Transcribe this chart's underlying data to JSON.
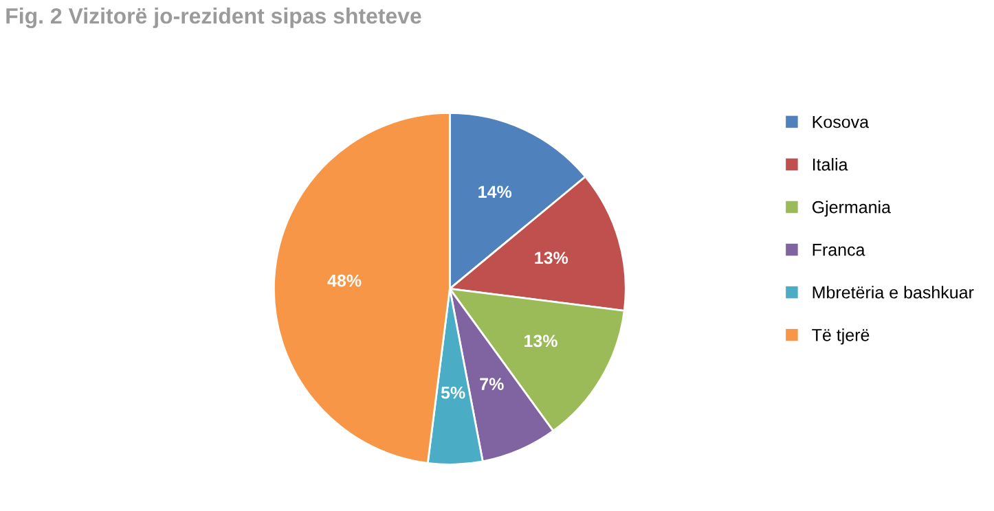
{
  "chart_data": {
    "type": "pie",
    "title": "Fig. 2 Vizitorë jo-rezident sipas shteteve",
    "categories": [
      "Kosova",
      "Italia",
      "Gjermania",
      "Franca",
      "Mbretëria e bashkuar",
      "Të tjerë"
    ],
    "values": [
      14,
      13,
      13,
      7,
      5,
      48
    ],
    "colors": [
      "#4f81bd",
      "#c0504d",
      "#9bbb59",
      "#8064a2",
      "#4bacc6",
      "#f79646"
    ],
    "value_labels": [
      "14%",
      "13%",
      "13%",
      "7%",
      "5%",
      "48%"
    ],
    "legend": "right"
  }
}
